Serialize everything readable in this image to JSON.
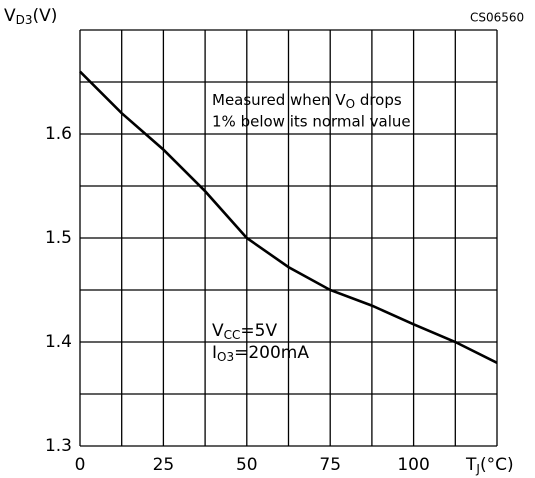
{
  "chart_data": {
    "type": "line",
    "code": "CS06560",
    "y_label": {
      "symbol": "V",
      "sub": "D3",
      "unit": "(V)"
    },
    "x_label": {
      "symbol": "T",
      "sub": "J",
      "unit": "(°C)"
    },
    "note": {
      "line1_pre": "Measured when V",
      "line1_sub": "O",
      "line1_post": " drops",
      "line2": "1% below its normal value"
    },
    "conditions": [
      {
        "symbol": "V",
        "sub": "CC",
        "post": "=5V"
      },
      {
        "symbol": "I",
        "sub": "O3",
        "post": "=200mA"
      }
    ],
    "x": [
      0,
      12.5,
      25,
      37.5,
      50,
      62.5,
      75,
      87.5,
      100,
      112.5,
      125
    ],
    "values": [
      1.66,
      1.62,
      1.585,
      1.545,
      1.5,
      1.472,
      1.45,
      1.435,
      1.417,
      1.4,
      1.38
    ],
    "color": "#000000",
    "xlim": [
      0,
      125
    ],
    "ylim": [
      1.3,
      1.7
    ],
    "xticks": [
      0,
      25,
      50,
      75,
      100
    ],
    "yticks": [
      1.3,
      1.4,
      1.5,
      1.6
    ],
    "xgrid": [
      0,
      12.5,
      25,
      37.5,
      50,
      62.5,
      75,
      87.5,
      100,
      112.5,
      125
    ],
    "ygrid": [
      1.3,
      1.35,
      1.4,
      1.45,
      1.5,
      1.55,
      1.6,
      1.65,
      1.7
    ],
    "grid": true
  }
}
